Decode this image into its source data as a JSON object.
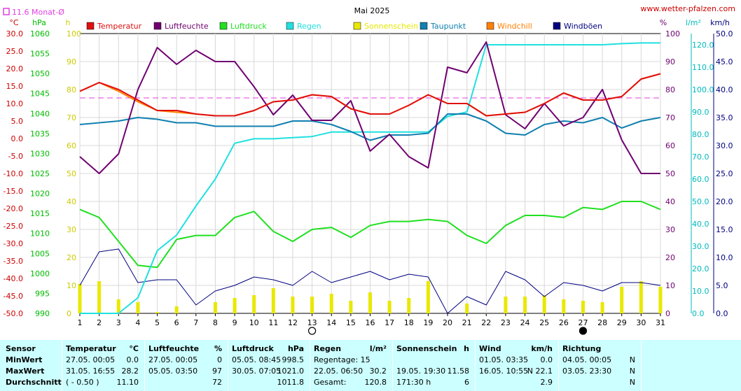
{
  "header": {
    "title": "Mai 2025",
    "source": "www.wetter-pfalzen.com",
    "monthly_avg_label": "11.6 Monat-Ø"
  },
  "colors": {
    "Temperatur": "#e01010",
    "Luftfeuchte": "#700070",
    "Luftdruck": "#20e020",
    "Regen": "#20e0e0",
    "Sonnenschein": "#e8e800",
    "Taupunkt": "#1080b0",
    "Windchill": "#ff8000",
    "Windböen": "#000080",
    "monthly_avg": "#e040e0"
  },
  "chart_data": {
    "type": "line",
    "title": "Mai 2025",
    "x": [
      1,
      2,
      3,
      4,
      5,
      6,
      7,
      8,
      9,
      10,
      11,
      12,
      13,
      14,
      15,
      16,
      17,
      18,
      19,
      20,
      21,
      22,
      23,
      24,
      25,
      26,
      27,
      28,
      29,
      30,
      31
    ],
    "axes": {
      "temp": {
        "unit": "°C",
        "range": [
          -50,
          30
        ],
        "ticks": [
          "30.0",
          "25.0",
          "20.0",
          "15.0",
          "10.0",
          "5.0",
          "0.0",
          "-5.0",
          "-10.0",
          "-15.0",
          "-20.0",
          "-25.0",
          "-30.0",
          "-35.0",
          "-40.0",
          "-45.0",
          "-50.0"
        ]
      },
      "pressure": {
        "unit": "hPa",
        "range": [
          990,
          1060
        ],
        "ticks": [
          "1060",
          "1055",
          "1050",
          "1045",
          "1040",
          "1035",
          "1030",
          "1025",
          "1020",
          "1015",
          "1010",
          "1005",
          "1000",
          "995",
          "990"
        ]
      },
      "sun": {
        "unit": "h",
        "range": [
          0,
          100
        ],
        "ticks": [
          "100",
          "90",
          "80",
          "70",
          "60",
          "50",
          "40",
          "30",
          "20",
          "10",
          "0"
        ]
      },
      "humidity": {
        "unit": "%",
        "range": [
          0,
          100
        ],
        "ticks": [
          "100",
          "90",
          "80",
          "70",
          "60",
          "50",
          "40",
          "30",
          "20",
          "10",
          "0"
        ]
      },
      "rain": {
        "unit": "l/m²",
        "range": [
          0,
          125
        ],
        "ticks": [
          "120.0",
          "110.0",
          "100.0",
          "90.0",
          "80.0",
          "70.0",
          "60.0",
          "50.0",
          "40.0",
          "30.0",
          "20.0",
          "10.0",
          "0.0"
        ]
      },
      "wind": {
        "unit": "km/h",
        "range": [
          0,
          50
        ],
        "ticks": [
          "50.0",
          "45.0",
          "40.0",
          "35.0",
          "30.0",
          "25.0",
          "20.0",
          "15.0",
          "10.0",
          "5.0",
          "0.0"
        ]
      }
    },
    "monthly_avg_temp": 11.6,
    "series": [
      {
        "name": "Temperatur",
        "axis": "temp",
        "values": [
          13.5,
          16,
          14,
          11,
          8,
          8,
          7,
          6.5,
          6.5,
          8,
          10.5,
          11,
          12.5,
          12,
          8.5,
          7,
          7,
          9.5,
          12.5,
          10,
          10,
          6.5,
          7,
          7.5,
          10,
          13,
          11,
          11,
          12,
          17,
          18.5
        ]
      },
      {
        "name": "Luftfeuchte",
        "axis": "humidity",
        "values": [
          56,
          50,
          57,
          80,
          95,
          89,
          94,
          90,
          90,
          81,
          71,
          78,
          69,
          69,
          76,
          58,
          64,
          56,
          52,
          88,
          86,
          97,
          71,
          66,
          75,
          67,
          70,
          80,
          62,
          50,
          50
        ]
      },
      {
        "name": "Luftdruck",
        "axis": "pressure",
        "values": [
          1016,
          1014,
          1008,
          1002,
          1001.5,
          1008.5,
          1009.5,
          1009.5,
          1014,
          1015.5,
          1010.5,
          1008,
          1011,
          1011.5,
          1009,
          1012,
          1013,
          1013,
          1013.5,
          1013,
          1009.5,
          1007.5,
          1012,
          1014.5,
          1014.5,
          1014,
          1016.5,
          1016,
          1018,
          1018,
          1016
        ]
      },
      {
        "name": "Regen",
        "axis": "rain",
        "values": [
          0,
          0,
          0,
          7,
          28,
          35,
          48,
          60,
          76,
          78,
          78,
          78.5,
          79,
          81,
          81,
          81,
          81,
          81,
          81,
          88,
          90,
          120,
          120,
          120,
          120,
          120,
          120,
          120,
          120.5,
          120.8,
          120.8
        ]
      },
      {
        "name": "Sonnenschein",
        "axis": "sun",
        "values": [
          10.5,
          11.5,
          5,
          4,
          0.5,
          2.5,
          0,
          4,
          5.5,
          6.5,
          9,
          6,
          6,
          7,
          4.5,
          7.5,
          4.5,
          5.5,
          11.58,
          0,
          3.5,
          0,
          6,
          6,
          6.5,
          5,
          4.5,
          4,
          9.5,
          11.5,
          9.5
        ]
      },
      {
        "name": "Taupunkt",
        "axis": "temp",
        "values": [
          4,
          4.5,
          5,
          6,
          5.5,
          4.5,
          4.5,
          3.5,
          3.5,
          3.5,
          3.5,
          5,
          5,
          4,
          2,
          -0.5,
          1,
          1,
          1.5,
          7,
          7,
          5,
          1.5,
          1,
          4,
          5,
          4.5,
          6,
          3,
          5,
          6
        ]
      },
      {
        "name": "Windchill",
        "axis": "temp",
        "values": [
          13.5,
          16,
          13.5,
          10.5,
          8,
          7.5,
          7,
          6.5,
          6.5,
          8,
          10.5,
          11,
          12.5,
          12,
          8.5,
          7,
          7,
          9.5,
          12.5,
          10,
          10,
          6.5,
          7,
          7.5,
          10,
          13,
          11,
          11,
          12,
          17,
          18.5
        ]
      },
      {
        "name": "Windböen",
        "axis": "wind",
        "values": [
          5,
          11,
          11.5,
          5.5,
          6,
          6,
          1.5,
          4,
          5,
          6.5,
          6,
          5,
          7.5,
          5.5,
          6.5,
          7.5,
          6,
          7,
          6.5,
          0,
          3,
          1.5,
          7.5,
          6,
          3,
          5.5,
          5,
          4,
          5.5,
          5.5,
          5
        ]
      }
    ],
    "moon_markers": [
      {
        "day": 13,
        "phase": "full"
      },
      {
        "day": 27,
        "phase": "new"
      }
    ],
    "grid": true,
    "legend": "top"
  },
  "stats": {
    "cols": {
      "sensor": "Sensor",
      "temp": "Temperatur",
      "temp_unit": "°C",
      "hum": "Luftfeuchte",
      "hum_unit": "%",
      "press": "Luftdruck",
      "press_unit": "hPa",
      "rain": "Regen",
      "rain_unit": "l/m²",
      "sun": "Sonnenschein",
      "sun_unit": "h",
      "wind": "Wind",
      "wind_unit": "km/h",
      "dir": "Richtung"
    },
    "rows": [
      {
        "label": "MinWert",
        "temp_when": "27.05.  00:05",
        "temp_val": "0.0",
        "hum_when": "27.05.  00:05",
        "hum_val": "0",
        "press_when": "05.05.  08:45",
        "press_val": "998.5",
        "rain_when": "Regentage: 15",
        "rain_val": "",
        "sun_when": "",
        "sun_val": "",
        "wind_when": "01.05.  03:35",
        "wind_val": "0.0",
        "dir_when": "04.05.  00:05",
        "dir_val": "N"
      },
      {
        "label": "MaxWert",
        "temp_when": "31.05.  16:55",
        "temp_val": "28.2",
        "hum_when": "05.05.  03:50",
        "hum_val": "97",
        "press_when": "30.05.  07:05",
        "press_val": "1021.0",
        "rain_when": "22.05.  06:50",
        "rain_val": "30.2",
        "sun_when": "19.05.  19:30",
        "sun_val": "11.58",
        "wind_when": "16.05.  10:55",
        "wind_val": "N 22.1",
        "dir_when": "03.05.  23:30",
        "dir_val": "N"
      },
      {
        "label": "Durchschnitt",
        "temp_when": "( - 0.50 )",
        "temp_val": "11.10",
        "hum_when": "",
        "hum_val": "72",
        "press_when": "",
        "press_val": "1011.8",
        "rain_when": "Gesamt:",
        "rain_val": "120.8",
        "sun_when": "171:30 h",
        "sun_val": "6",
        "wind_when": "",
        "wind_val": "2.9",
        "dir_when": "",
        "dir_val": "N"
      }
    ]
  }
}
